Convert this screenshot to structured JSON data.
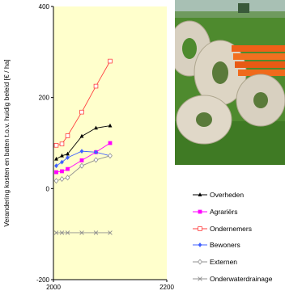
{
  "chart_data": {
    "type": "line",
    "title": "",
    "xlabel": "",
    "ylabel": "Verandering kosten en baten t.o.v. huidig beleid [€ / ha]",
    "xlim": [
      2000,
      2200
    ],
    "ylim": [
      -200,
      400
    ],
    "x_tick_labels": [
      "2000",
      "2200"
    ],
    "y_tick_labels": [
      "400",
      "200",
      "0",
      "-200"
    ],
    "y_ticks": [
      400,
      200,
      0,
      -200
    ],
    "x_ticks": [
      2000,
      2200
    ],
    "grid": "none",
    "background_color": "#ffffcc",
    "legend_placement": "bottom-right",
    "series": [
      {
        "name": "Overheden",
        "color": "#000000",
        "marker": "triangle",
        "dash": "solid",
        "x": [
          2005,
          2015,
          2025,
          2050,
          2075,
          2100
        ],
        "y": [
          65,
          72,
          76,
          115,
          133,
          138
        ]
      },
      {
        "name": "Agrariërs",
        "color": "#ff00ff",
        "marker": "square",
        "dash": "solid",
        "x": [
          2005,
          2015,
          2025,
          2050,
          2075,
          2100
        ],
        "y": [
          36,
          38,
          43,
          62,
          80,
          100
        ]
      },
      {
        "name": "Ondernemers",
        "color": "#ff4040",
        "marker": "open-square",
        "dash": "solid",
        "x": [
          2005,
          2015,
          2025,
          2050,
          2075,
          2100
        ],
        "y": [
          95,
          98,
          116,
          168,
          225,
          280
        ]
      },
      {
        "name": "Bewoners",
        "color": "#4060ff",
        "marker": "diamond",
        "dash": "solid",
        "x": [
          2005,
          2015,
          2025,
          2050,
          2075,
          2100
        ],
        "y": [
          50,
          58,
          68,
          82,
          80,
          72
        ]
      },
      {
        "name": "Externen",
        "color": "#909090",
        "marker": "open-diamond",
        "dash": "solid",
        "x": [
          2005,
          2015,
          2025,
          2050,
          2075,
          2100
        ],
        "y": [
          17,
          21,
          24,
          50,
          63,
          72
        ]
      },
      {
        "name": "Onderwaterdrainage",
        "color": "#909090",
        "marker": "x",
        "dash": "solid",
        "x": [
          2005,
          2015,
          2025,
          2050,
          2075,
          2100
        ],
        "y": [
          -97,
          -97,
          -97,
          -97,
          -97,
          -97
        ]
      }
    ]
  },
  "photo": {
    "description_icon": "drainage-pipes-photo-icon",
    "colors": {
      "sky": "#9fb8a8",
      "grass": "#4e8a2e",
      "pipe": "#d8d0c0",
      "orange": "#f06018"
    }
  }
}
